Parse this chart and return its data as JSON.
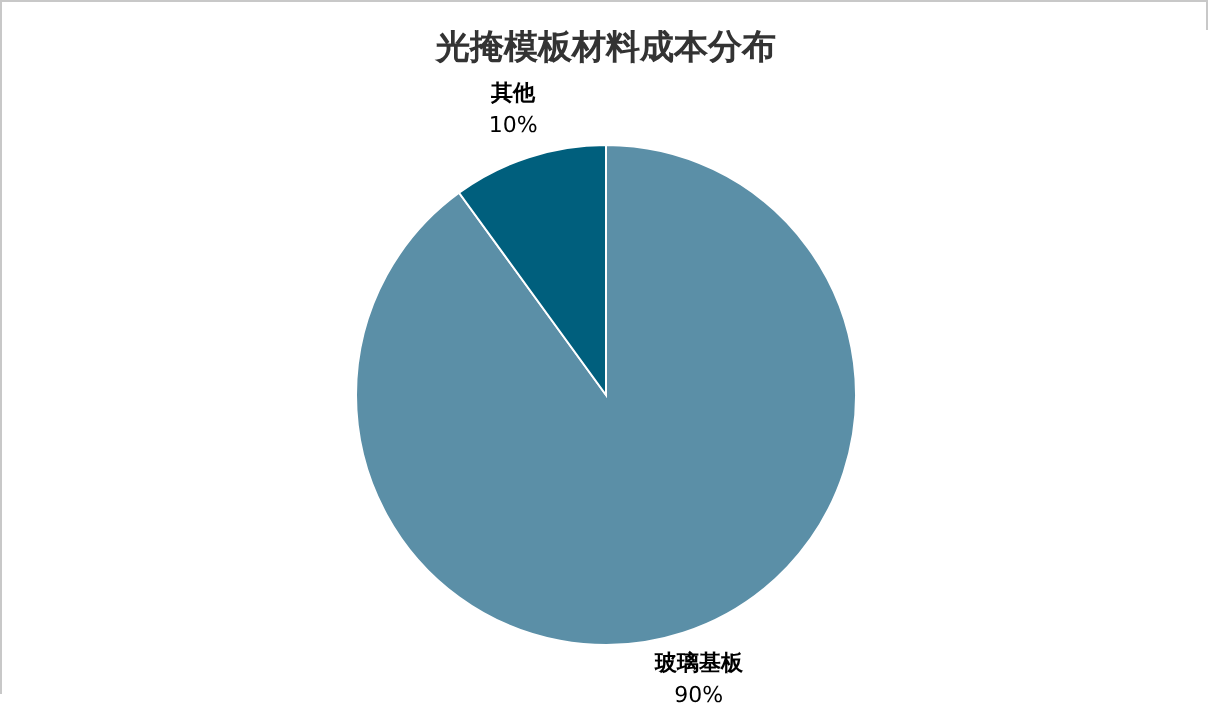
{
  "chart_data": {
    "type": "pie",
    "title": "光掩模板材料成本分布",
    "categories": [
      "玻璃基板",
      "其他"
    ],
    "values": [
      90,
      10
    ],
    "colors": [
      "#5b8fa7",
      "#005f7d"
    ],
    "value_labels": [
      "90%",
      "10%"
    ]
  }
}
